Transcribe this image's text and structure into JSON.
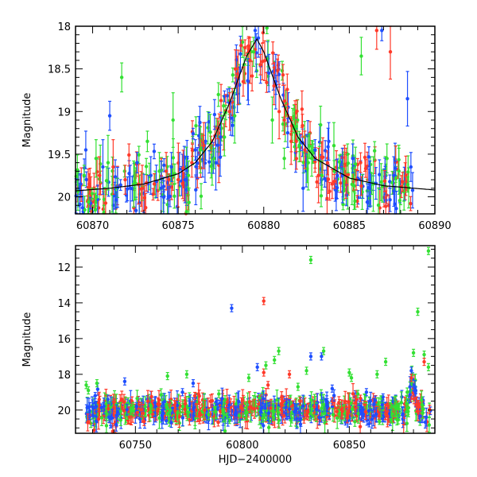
{
  "chart_data": [
    {
      "type": "scatter",
      "title": "",
      "xlabel": "",
      "ylabel": "Magnitude",
      "xlim": [
        60869,
        60890
      ],
      "ylim": [
        20.2,
        18.0
      ],
      "y_inverted": true,
      "xticks": [
        60870,
        60875,
        60880,
        60885,
        60890
      ],
      "yticks": [
        18,
        18.5,
        19,
        19.5,
        20
      ],
      "grid": false,
      "colors": {
        "blue": "#1f4fff",
        "green": "#33e033",
        "red": "#ff3a2a",
        "model": "#000000"
      },
      "model_curve": {
        "name": "",
        "peak_x": 60879.6,
        "peak_mag": 18.15,
        "baseline_mag": 19.95,
        "x": [
          60869,
          60871,
          60873,
          60875,
          60876,
          60877,
          60878,
          60879,
          60879.6,
          60880,
          60881,
          60882,
          60883,
          60885,
          60887,
          60890
        ],
        "y": [
          19.93,
          19.9,
          19.85,
          19.73,
          19.6,
          19.35,
          18.9,
          18.35,
          18.15,
          18.3,
          18.85,
          19.3,
          19.55,
          19.78,
          19.87,
          19.92
        ]
      },
      "series": [
        {
          "color": "blue",
          "x": [
            60869.3,
            60869.6,
            60870.6,
            60871.0,
            60872.2,
            60872.6,
            60873.4,
            60874.0,
            60874.6,
            60875.4,
            60876.0,
            60876.6,
            60877.2,
            60878.0,
            60879.1,
            60879.5,
            60880.3,
            60880.7,
            60881.4,
            60882.3,
            60883.0,
            60883.8,
            60884.6,
            60885.2,
            60886.2,
            60886.9,
            60887.6,
            60888.4,
            60888.6
          ],
          "y": [
            19.85,
            19.45,
            19.65,
            19.05,
            19.9,
            19.6,
            19.75,
            19.9,
            19.65,
            19.8,
            19.45,
            19.35,
            19.6,
            18.9,
            18.65,
            18.05,
            18.55,
            18.65,
            19.25,
            19.9,
            19.45,
            19.35,
            19.75,
            19.55,
            19.85,
            18.05,
            19.75,
            18.85,
            19.65
          ]
        },
        {
          "color": "green",
          "x": [
            60869.5,
            60870.2,
            60870.9,
            60871.7,
            60872.4,
            60873.2,
            60873.9,
            60874.7,
            60875.6,
            60876.3,
            60877.1,
            60877.7,
            60878.3,
            60879.4,
            60880.5,
            60881.2,
            60881.8,
            60882.6,
            60883.4,
            60884.1,
            60884.9,
            60885.7,
            60886.4,
            60887.2,
            60887.9
          ],
          "y": [
            19.75,
            19.55,
            19.6,
            18.6,
            19.85,
            19.35,
            19.7,
            19.1,
            19.75,
            19.45,
            19.55,
            19.3,
            19.05,
            18.3,
            19.1,
            19.55,
            19.2,
            19.6,
            19.75,
            19.4,
            19.5,
            18.35,
            19.85,
            19.55,
            19.7
          ]
        },
        {
          "color": "red",
          "x": [
            60869.8,
            60870.4,
            60871.2,
            60871.9,
            60872.9,
            60873.6,
            60874.3,
            60875.0,
            60875.8,
            60876.5,
            60877.3,
            60878.0,
            60878.5,
            60878.8,
            60879.2,
            60879.8,
            60880.6,
            60880.9,
            60881.2,
            60881.6,
            60881.9,
            60882.4,
            60883.2,
            60884.0,
            60884.8,
            60885.4,
            60886.6,
            60887.4
          ],
          "y": [
            19.85,
            19.75,
            19.65,
            19.8,
            19.9,
            19.85,
            19.7,
            19.8,
            19.6,
            19.4,
            19.2,
            19.0,
            18.6,
            18.65,
            18.4,
            18.45,
            18.7,
            19.0,
            19.1,
            19.35,
            19.35,
            19.45,
            19.75,
            19.85,
            19.75,
            19.8,
            18.05,
            18.3
          ]
        }
      ]
    },
    {
      "type": "scatter",
      "title": "",
      "xlabel": "HJD−2400000",
      "ylabel": "Magnitude",
      "xlim": [
        60722,
        60890
      ],
      "ylim": [
        21.3,
        10.8
      ],
      "y_inverted": true,
      "xticks": [
        60750,
        60800,
        60850
      ],
      "yticks": [
        12,
        14,
        16,
        18,
        20
      ],
      "grid": false,
      "colors": {
        "blue": "#1f4fff",
        "green": "#33e033",
        "red": "#ff3a2a"
      },
      "baseline_mag": 20.0,
      "baseline_x_range": [
        60727,
        60888
      ],
      "outliers": [
        {
          "color": "green",
          "x": 60832,
          "y": 11.6
        },
        {
          "color": "blue",
          "x": 60795,
          "y": 14.3
        },
        {
          "color": "red",
          "x": 60810,
          "y": 13.9
        },
        {
          "color": "green",
          "x": 60887,
          "y": 11.1
        },
        {
          "color": "green",
          "x": 60882,
          "y": 14.5
        },
        {
          "color": "green",
          "x": 60817,
          "y": 16.7
        },
        {
          "color": "green",
          "x": 60815,
          "y": 17.2
        },
        {
          "color": "green",
          "x": 60838,
          "y": 16.7
        },
        {
          "color": "blue",
          "x": 60837,
          "y": 17.0
        },
        {
          "color": "blue",
          "x": 60832,
          "y": 17.0
        },
        {
          "color": "green",
          "x": 60830,
          "y": 17.8
        },
        {
          "color": "red",
          "x": 60810,
          "y": 17.9
        },
        {
          "color": "blue",
          "x": 60807,
          "y": 17.6
        },
        {
          "color": "green",
          "x": 60803,
          "y": 18.2
        },
        {
          "color": "green",
          "x": 60811,
          "y": 17.5
        },
        {
          "color": "red",
          "x": 60822,
          "y": 18.0
        },
        {
          "color": "blue",
          "x": 60745,
          "y": 18.4
        },
        {
          "color": "green",
          "x": 60765,
          "y": 18.1
        },
        {
          "color": "blue",
          "x": 60777,
          "y": 18.5
        },
        {
          "color": "green",
          "x": 60774,
          "y": 18.0
        },
        {
          "color": "green",
          "x": 60727,
          "y": 18.6
        },
        {
          "color": "green",
          "x": 60728,
          "y": 18.9
        },
        {
          "color": "green",
          "x": 60732,
          "y": 18.5
        },
        {
          "color": "green",
          "x": 60850,
          "y": 17.9
        },
        {
          "color": "green",
          "x": 60851,
          "y": 18.2
        },
        {
          "color": "green",
          "x": 60863,
          "y": 18.0
        },
        {
          "color": "green",
          "x": 60867,
          "y": 17.3
        },
        {
          "color": "green",
          "x": 60880,
          "y": 16.8
        },
        {
          "color": "green",
          "x": 60885,
          "y": 16.9
        },
        {
          "color": "red",
          "x": 60885,
          "y": 17.3
        },
        {
          "color": "green",
          "x": 60887,
          "y": 17.6
        },
        {
          "color": "blue",
          "x": 60879,
          "y": 17.8
        },
        {
          "color": "red",
          "x": 60879,
          "y": 18.2
        },
        {
          "color": "blue",
          "x": 60881,
          "y": 18.9
        },
        {
          "color": "green",
          "x": 60854,
          "y": 19.1
        },
        {
          "color": "blue",
          "x": 60858,
          "y": 19.0
        },
        {
          "color": "blue",
          "x": 60772,
          "y": 19.0
        },
        {
          "color": "green",
          "x": 60789,
          "y": 19.1
        },
        {
          "color": "red",
          "x": 60812,
          "y": 18.6
        },
        {
          "color": "green",
          "x": 60826,
          "y": 18.7
        },
        {
          "color": "blue",
          "x": 60842,
          "y": 18.8
        }
      ]
    }
  ]
}
